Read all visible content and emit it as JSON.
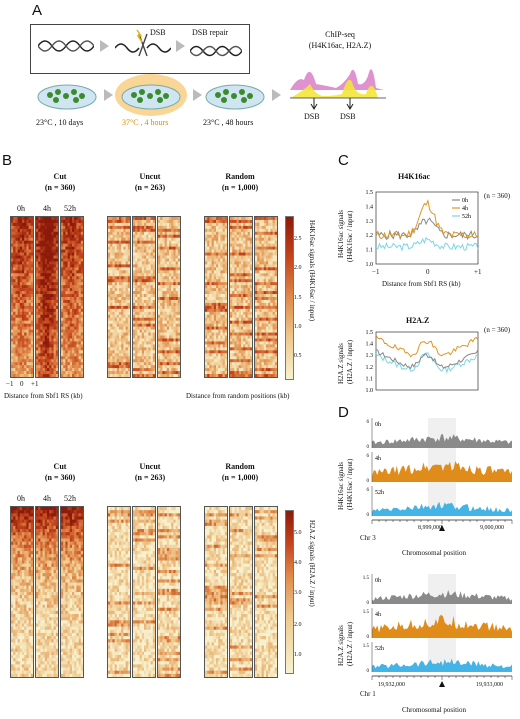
{
  "panels": {
    "a": "A",
    "b": "B",
    "c": "C",
    "d": "D"
  },
  "panelA": {
    "dsb": "DSB",
    "dsb_repair": "DSB repair",
    "chip_title": "ChIP-seq",
    "chip_sub": "(H4K16ac, H2A.Z)",
    "cond1": "23°C , 10 days",
    "cond2": "37°C , 4 hours",
    "cond3": "23°C , 48 hours",
    "dsb_label1": "DSB",
    "dsb_label2": "DSB"
  },
  "panelB": {
    "groups": [
      {
        "title": "Cut",
        "n": "(n = 360)"
      },
      {
        "title": "Uncut",
        "n": "(n = 263)"
      },
      {
        "title": "Random",
        "n": "(n = 1,000)"
      }
    ],
    "timepoints": [
      "0h",
      "4h",
      "52h"
    ],
    "xticks": [
      "−1",
      "0",
      "+1"
    ],
    "xlabel_left": "Distance from Sbf1 RS (kb)",
    "xlabel_right": "Distance from random positions (kb)",
    "ylabel_top": "H4K16ac signals (H4K16ac / input)",
    "ylabel_bottom": "H2A.Z signals (H2A.Z / input)",
    "cbar_top": [
      "2.5",
      "2.0",
      "1.5",
      "1.0",
      "0.5"
    ],
    "cbar_bottom": [
      "5.0",
      "4.0",
      "3.0",
      "2.0",
      "1.0"
    ],
    "colors": {
      "high": "#8b1a0a",
      "mid": "#d9622b",
      "low": "#f5edc6"
    }
  },
  "panelC": {
    "title1": "H4K16ac",
    "title2": "H2A.Z",
    "n": "(n = 360)",
    "ylabel1": "H4K16ac signals",
    "ylabel1b": "(H4K16ac / input)",
    "ylabel2": "H2A.Z signals",
    "ylabel2b": "(H2A.Z / input)",
    "yticks1": [
      "1.5",
      "1.4",
      "1.3",
      "1.2",
      "1.1",
      "1.0"
    ],
    "yticks2": [
      "1.5",
      "1.4",
      "1.3",
      "1.2",
      "1.1",
      "1.0"
    ],
    "xticks": [
      "−1",
      "0",
      "+1"
    ],
    "xlabel": "Distance from Sbf1 RS (kb)",
    "legend": [
      "0h",
      "4h",
      "52h"
    ],
    "colors": {
      "0h": "#888888",
      "4h": "#e0961f",
      "52h": "#7dd6e6"
    }
  },
  "panelD": {
    "ylabel1": "H4K16ac signals",
    "ylabel1b": "(H4K16ac / input)",
    "ylabel2": "H2A.Z signals",
    "ylabel2b": "(H2A.Z / input)",
    "tracks": [
      "0h",
      "4h",
      "52h"
    ],
    "ymax1": "6",
    "ymax2": "1.5",
    "chr1": "Chr 3",
    "chr1_left": "8,999,000",
    "chr1_right": "9,000,000",
    "chr2": "Chr 1",
    "chr2_left": "19,932,000",
    "chr2_right": "19,933,000",
    "xlabel": "Chromosomal position",
    "colors": {
      "0h": "#8a8a8a",
      "4h": "#e08c1a",
      "52h": "#44b4e6"
    }
  }
}
